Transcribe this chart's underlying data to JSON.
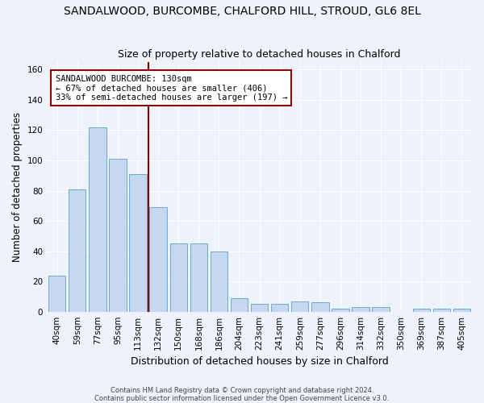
{
  "title_line1": "SANDALWOOD, BURCOMBE, CHALFORD HILL, STROUD, GL6 8EL",
  "title_line2": "Size of property relative to detached houses in Chalford",
  "xlabel": "Distribution of detached houses by size in Chalford",
  "ylabel": "Number of detached properties",
  "categories": [
    "40sqm",
    "59sqm",
    "77sqm",
    "95sqm",
    "113sqm",
    "132sqm",
    "150sqm",
    "168sqm",
    "186sqm",
    "204sqm",
    "223sqm",
    "241sqm",
    "259sqm",
    "277sqm",
    "296sqm",
    "314sqm",
    "332sqm",
    "350sqm",
    "369sqm",
    "387sqm",
    "405sqm"
  ],
  "values": [
    24,
    81,
    122,
    101,
    91,
    69,
    45,
    45,
    40,
    9,
    5,
    5,
    7,
    6,
    2,
    3,
    3,
    0,
    2,
    2,
    2
  ],
  "bar_color": "#c5d8f0",
  "bar_edge_color": "#6aaad4",
  "vline_color": "#8b0000",
  "annotation_text": "SANDALWOOD BURCOMBE: 130sqm\n← 67% of detached houses are smaller (406)\n33% of semi-detached houses are larger (197) →",
  "annotation_box_color": "white",
  "annotation_box_edge_color": "#8b0000",
  "ylim": [
    0,
    165
  ],
  "yticks": [
    0,
    20,
    40,
    60,
    80,
    100,
    120,
    140,
    160
  ],
  "footer_line1": "Contains HM Land Registry data © Crown copyright and database right 2024.",
  "footer_line2": "Contains public sector information licensed under the Open Government Licence v3.0.",
  "bg_color": "#eef2fa",
  "plot_bg_color": "#eef2fa",
  "grid_color": "#ffffff",
  "title_fontsize": 10,
  "subtitle_fontsize": 9,
  "tick_fontsize": 7.5,
  "ylabel_fontsize": 8.5,
  "annotation_fontsize": 7.5
}
